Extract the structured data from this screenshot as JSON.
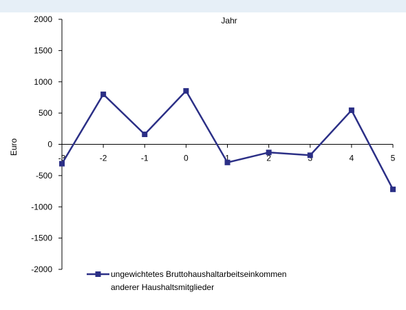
{
  "chart_data": {
    "type": "line",
    "title": "Jahr",
    "xlabel": "",
    "ylabel": "Euro",
    "x": [
      -3,
      -2,
      -1,
      0,
      1,
      2,
      3,
      4,
      5
    ],
    "x_tick_labels": [
      "-3",
      "-2",
      "-1",
      "0",
      "1",
      "2",
      "3",
      "4",
      "5"
    ],
    "y_ticks": [
      2000,
      1500,
      1000,
      500,
      0,
      -500,
      -1000,
      -1500,
      -2000
    ],
    "y_tick_labels": [
      "2000",
      "1500",
      "1000",
      "500",
      "0",
      "-500",
      "-1000",
      "-1500",
      "-2000"
    ],
    "ylim": [
      -2000,
      2000
    ],
    "xlim": [
      -3,
      5
    ],
    "grid": false,
    "legend_position": "bottom-left",
    "series": [
      {
        "name_line1": "ungewichtetes Bruttohaushaltarbeitseinkommen",
        "name_line2": "anderer Haushaltsmitglieder",
        "color": "#2b2f86",
        "marker": "square",
        "values": [
          -310,
          800,
          160,
          855,
          -290,
          -130,
          -175,
          545,
          -720
        ]
      }
    ]
  },
  "colors": {
    "background": "#ffffff",
    "top_band": "#e6eff7",
    "axis": "#000000"
  }
}
